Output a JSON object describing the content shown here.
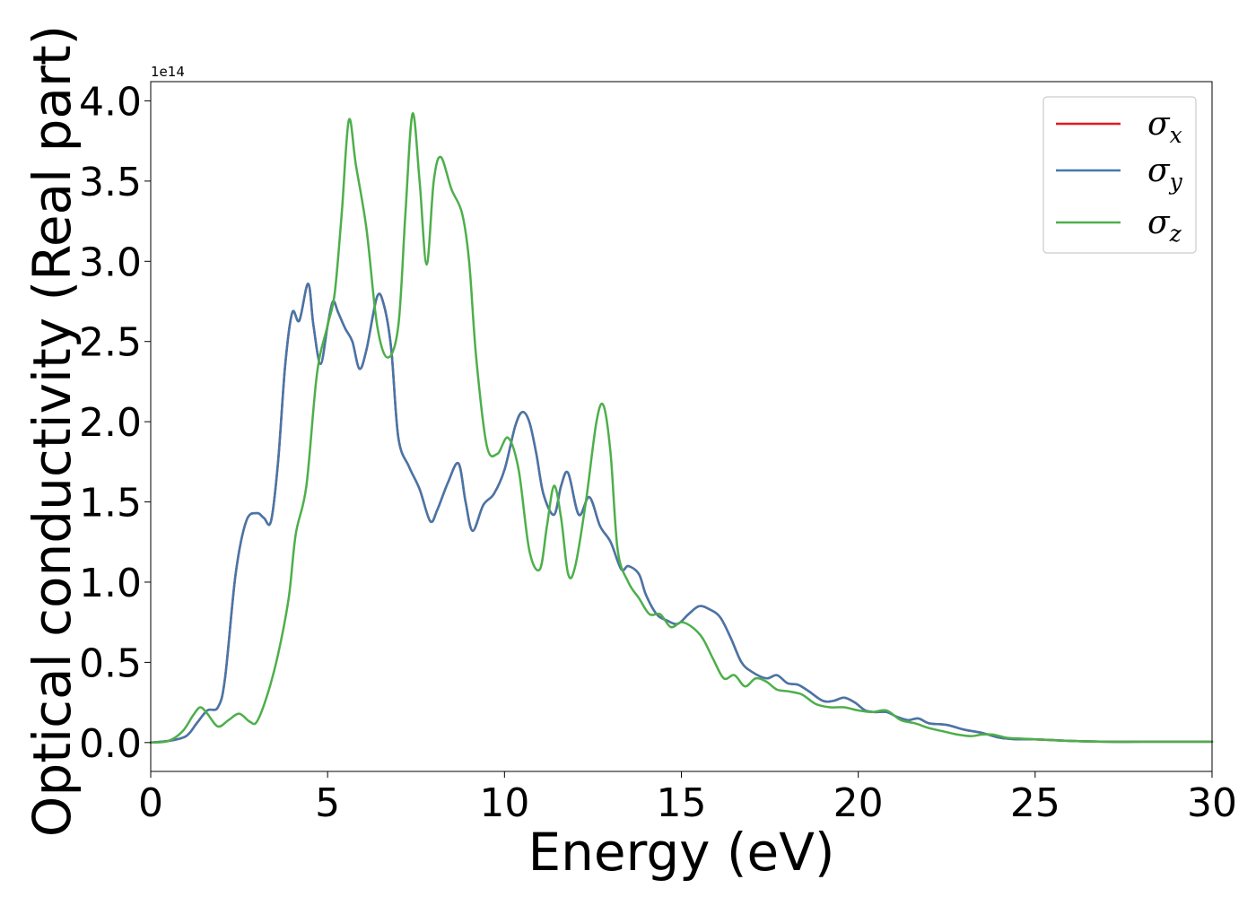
{
  "chart_data": {
    "type": "line",
    "xlabel": "Energy (eV)",
    "ylabel": "Optical conductivity (Real part)",
    "y_offset_label": "1e14",
    "xlim": [
      0,
      30
    ],
    "ylim": [
      -0.18,
      4.12
    ],
    "xticks": [
      0,
      5,
      10,
      15,
      20,
      25,
      30
    ],
    "xtick_labels": [
      "0",
      "5",
      "10",
      "15",
      "20",
      "25",
      "30"
    ],
    "yticks": [
      0.0,
      0.5,
      1.0,
      1.5,
      2.0,
      2.5,
      3.0,
      3.5,
      4.0
    ],
    "ytick_labels": [
      "0.0",
      "0.5",
      "1.0",
      "1.5",
      "2.0",
      "2.5",
      "3.0",
      "3.5",
      "4.0"
    ],
    "grid": false,
    "legend_position": "top-right",
    "series": [
      {
        "name": "σx",
        "legend_main": "σ",
        "legend_sub": "x",
        "color": "#e41a1c",
        "x": [
          0,
          0.5,
          1.0,
          1.3,
          1.6,
          1.9,
          2.1,
          2.4,
          2.7,
          3.0,
          3.2,
          3.4,
          3.6,
          3.8,
          4.0,
          4.2,
          4.45,
          4.6,
          4.8,
          5.0,
          5.15,
          5.3,
          5.5,
          5.7,
          5.9,
          6.1,
          6.4,
          6.6,
          6.8,
          7.0,
          7.3,
          7.6,
          7.9,
          8.1,
          8.4,
          8.7,
          8.9,
          9.1,
          9.4,
          9.7,
          10.0,
          10.3,
          10.5,
          10.7,
          10.9,
          11.1,
          11.4,
          11.6,
          11.8,
          12.1,
          12.4,
          12.7,
          13.0,
          13.3,
          13.5,
          13.8,
          14.0,
          14.3,
          14.6,
          14.9,
          15.2,
          15.5,
          15.8,
          16.1,
          16.4,
          16.7,
          17.0,
          17.4,
          17.7,
          18.0,
          18.3,
          18.6,
          19.0,
          19.3,
          19.6,
          19.9,
          20.2,
          20.5,
          20.8,
          21.1,
          21.4,
          21.7,
          22.0,
          22.5,
          23.0,
          23.5,
          24.0,
          24.5,
          25.0,
          26.0,
          27.0,
          28.0,
          30.0
        ],
        "values": [
          0,
          0.01,
          0.04,
          0.12,
          0.2,
          0.22,
          0.4,
          1.05,
          1.38,
          1.43,
          1.4,
          1.38,
          1.75,
          2.35,
          2.68,
          2.63,
          2.86,
          2.6,
          2.36,
          2.6,
          2.75,
          2.68,
          2.58,
          2.5,
          2.33,
          2.45,
          2.78,
          2.72,
          2.45,
          1.9,
          1.72,
          1.58,
          1.38,
          1.45,
          1.62,
          1.74,
          1.5,
          1.32,
          1.48,
          1.55,
          1.7,
          1.97,
          2.06,
          2.0,
          1.8,
          1.55,
          1.42,
          1.6,
          1.68,
          1.42,
          1.53,
          1.35,
          1.25,
          1.08,
          1.1,
          1.05,
          0.92,
          0.8,
          0.76,
          0.74,
          0.8,
          0.85,
          0.83,
          0.78,
          0.65,
          0.5,
          0.44,
          0.4,
          0.42,
          0.37,
          0.36,
          0.32,
          0.26,
          0.26,
          0.28,
          0.25,
          0.2,
          0.19,
          0.19,
          0.16,
          0.14,
          0.15,
          0.12,
          0.11,
          0.08,
          0.06,
          0.03,
          0.02,
          0.02,
          0.01,
          0.005,
          0.005,
          0.005
        ]
      },
      {
        "name": "σy",
        "legend_main": "σ",
        "legend_sub": "y",
        "color": "#4477aa",
        "x": [
          0,
          0.5,
          1.0,
          1.3,
          1.6,
          1.9,
          2.1,
          2.4,
          2.7,
          3.0,
          3.2,
          3.4,
          3.6,
          3.8,
          4.0,
          4.2,
          4.45,
          4.6,
          4.8,
          5.0,
          5.15,
          5.3,
          5.5,
          5.7,
          5.9,
          6.1,
          6.4,
          6.6,
          6.8,
          7.0,
          7.3,
          7.6,
          7.9,
          8.1,
          8.4,
          8.7,
          8.9,
          9.1,
          9.4,
          9.7,
          10.0,
          10.3,
          10.5,
          10.7,
          10.9,
          11.1,
          11.4,
          11.6,
          11.8,
          12.1,
          12.4,
          12.7,
          13.0,
          13.3,
          13.5,
          13.8,
          14.0,
          14.3,
          14.6,
          14.9,
          15.2,
          15.5,
          15.8,
          16.1,
          16.4,
          16.7,
          17.0,
          17.4,
          17.7,
          18.0,
          18.3,
          18.6,
          19.0,
          19.3,
          19.6,
          19.9,
          20.2,
          20.5,
          20.8,
          21.1,
          21.4,
          21.7,
          22.0,
          22.5,
          23.0,
          23.5,
          24.0,
          24.5,
          25.0,
          26.0,
          27.0,
          28.0,
          30.0
        ],
        "values": [
          0,
          0.01,
          0.04,
          0.12,
          0.2,
          0.22,
          0.4,
          1.05,
          1.38,
          1.43,
          1.4,
          1.38,
          1.75,
          2.35,
          2.68,
          2.63,
          2.86,
          2.6,
          2.36,
          2.6,
          2.75,
          2.68,
          2.58,
          2.5,
          2.33,
          2.45,
          2.78,
          2.72,
          2.45,
          1.9,
          1.72,
          1.58,
          1.38,
          1.45,
          1.62,
          1.74,
          1.5,
          1.32,
          1.48,
          1.55,
          1.7,
          1.97,
          2.06,
          2.0,
          1.8,
          1.55,
          1.42,
          1.6,
          1.68,
          1.42,
          1.53,
          1.35,
          1.25,
          1.08,
          1.1,
          1.05,
          0.92,
          0.8,
          0.76,
          0.74,
          0.8,
          0.85,
          0.83,
          0.78,
          0.65,
          0.5,
          0.44,
          0.4,
          0.42,
          0.37,
          0.36,
          0.32,
          0.26,
          0.26,
          0.28,
          0.25,
          0.2,
          0.19,
          0.19,
          0.16,
          0.14,
          0.15,
          0.12,
          0.11,
          0.08,
          0.06,
          0.03,
          0.02,
          0.02,
          0.01,
          0.005,
          0.005,
          0.005
        ]
      },
      {
        "name": "σz",
        "legend_main": "σ",
        "legend_sub": "z",
        "color": "#4daf4a",
        "x": [
          0,
          0.5,
          0.9,
          1.2,
          1.4,
          1.6,
          1.9,
          2.2,
          2.5,
          2.8,
          3.0,
          3.3,
          3.6,
          3.9,
          4.1,
          4.4,
          4.7,
          5.0,
          5.2,
          5.4,
          5.6,
          5.8,
          6.1,
          6.4,
          6.7,
          7.0,
          7.2,
          7.4,
          7.6,
          7.8,
          8.0,
          8.2,
          8.5,
          8.8,
          9.0,
          9.2,
          9.5,
          9.8,
          10.1,
          10.4,
          10.7,
          11.0,
          11.2,
          11.4,
          11.6,
          11.8,
          12.0,
          12.3,
          12.6,
          12.8,
          13.0,
          13.2,
          13.5,
          13.8,
          14.1,
          14.4,
          14.7,
          15.0,
          15.3,
          15.6,
          15.9,
          16.2,
          16.5,
          16.8,
          17.1,
          17.4,
          17.7,
          18.0,
          18.4,
          18.8,
          19.2,
          19.6,
          20.0,
          20.4,
          20.8,
          21.2,
          21.6,
          22.0,
          22.4,
          22.8,
          23.2,
          23.5,
          23.8,
          24.2,
          24.6,
          25.0,
          26.0,
          27.0,
          28.0,
          30.0
        ],
        "values": [
          0,
          0.01,
          0.07,
          0.17,
          0.22,
          0.18,
          0.1,
          0.14,
          0.18,
          0.13,
          0.13,
          0.3,
          0.55,
          0.9,
          1.3,
          1.6,
          2.3,
          2.6,
          2.8,
          3.3,
          3.88,
          3.6,
          3.2,
          2.6,
          2.4,
          2.6,
          3.3,
          3.92,
          3.5,
          2.98,
          3.5,
          3.65,
          3.45,
          3.3,
          3.0,
          2.4,
          1.85,
          1.8,
          1.9,
          1.7,
          1.2,
          1.08,
          1.35,
          1.6,
          1.4,
          1.05,
          1.1,
          1.5,
          2.0,
          2.1,
          1.8,
          1.2,
          1.0,
          0.9,
          0.8,
          0.8,
          0.72,
          0.75,
          0.72,
          0.65,
          0.52,
          0.4,
          0.42,
          0.35,
          0.4,
          0.38,
          0.33,
          0.32,
          0.3,
          0.24,
          0.22,
          0.22,
          0.2,
          0.19,
          0.2,
          0.14,
          0.12,
          0.09,
          0.07,
          0.05,
          0.04,
          0.05,
          0.05,
          0.03,
          0.025,
          0.02,
          0.01,
          0.005,
          0.005,
          0.005
        ]
      }
    ]
  }
}
